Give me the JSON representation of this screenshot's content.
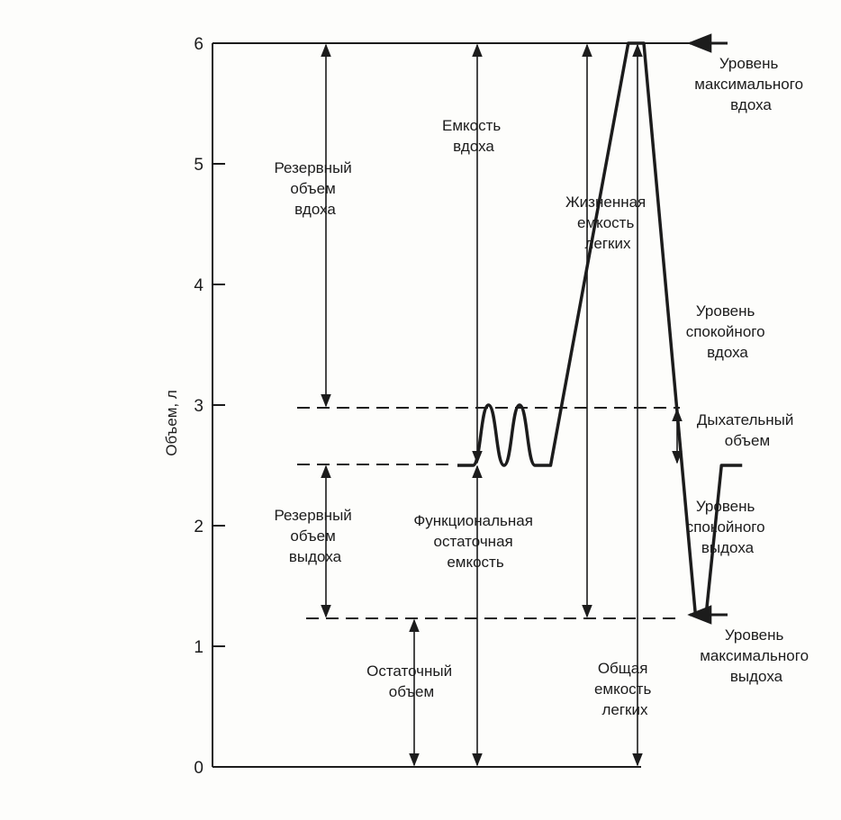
{
  "axis": {
    "ylabel": "Объем, л",
    "ticks": [
      "0",
      "1",
      "2",
      "3",
      "4",
      "5",
      "6"
    ]
  },
  "levels": {
    "max_inspiration": 6,
    "quiet_inspiration": 3,
    "quiet_expiration": 2.5,
    "max_expiration": 1.25,
    "zero": 0
  },
  "labels": {
    "irv": [
      "Резервный",
      "объем",
      "вдоха"
    ],
    "ic": [
      "Емкость",
      "вдоха"
    ],
    "vc": [
      "Жизненная",
      "емкость",
      "легких"
    ],
    "erv": [
      "Резервный",
      "объем",
      "выдоха"
    ],
    "frc": [
      "Функциональная",
      "остаточная",
      "емкость"
    ],
    "rv": [
      "Остаточный",
      "объем"
    ],
    "tlc": [
      "Общая",
      "емкость",
      "легких"
    ],
    "tidal": [
      "Дыхательный",
      "объем"
    ],
    "lvl_max_insp": [
      "Уровень",
      "максимального",
      "вдоха"
    ],
    "lvl_quiet_insp": [
      "Уровень",
      "спокойного",
      "вдоха"
    ],
    "lvl_quiet_exp": [
      "Уровень",
      "спокойного",
      "выдоха"
    ],
    "lvl_max_exp": [
      "Уровень",
      "максимального",
      "выдоха"
    ]
  },
  "curve": {
    "points_t_v": [
      [
        0.0,
        2.5
      ],
      [
        0.3,
        2.5
      ],
      [
        0.6,
        3.0
      ],
      [
        0.9,
        2.5
      ],
      [
        1.2,
        3.0
      ],
      [
        1.5,
        2.5
      ],
      [
        1.8,
        2.5
      ],
      [
        3.3,
        6.0
      ],
      [
        3.6,
        6.0
      ],
      [
        4.6,
        1.25
      ],
      [
        4.8,
        1.25
      ],
      [
        5.1,
        2.5
      ],
      [
        5.5,
        2.5
      ]
    ]
  },
  "colors": {
    "ink": "#1c1c1c"
  }
}
